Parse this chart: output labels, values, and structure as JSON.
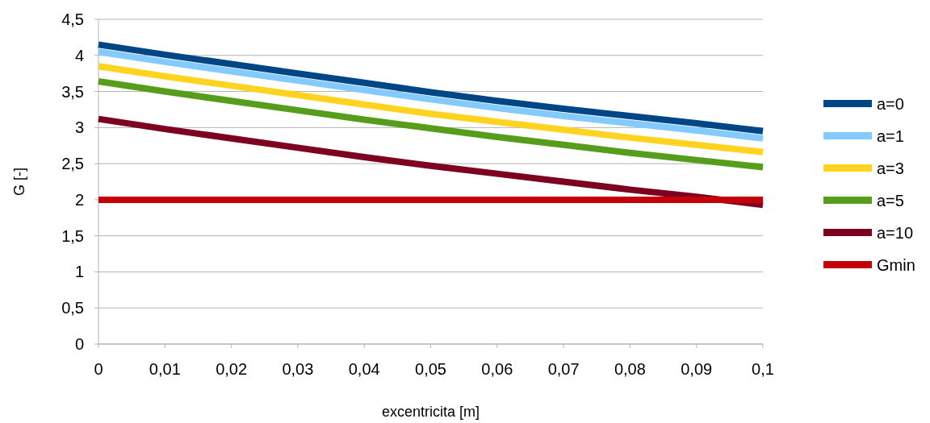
{
  "chart_data": {
    "type": "line",
    "xlabel": "excentricita [m]",
    "ylabel": "G [-]",
    "x": [
      0,
      0.01,
      0.02,
      0.03,
      0.04,
      0.05,
      0.06,
      0.07,
      0.08,
      0.09,
      0.1
    ],
    "xlim": [
      0,
      0.1
    ],
    "xticks": [
      0,
      {
        "value": 0.01,
        "label": "0,01"
      },
      {
        "value": 0.02,
        "label": "0,02"
      },
      {
        "value": 0.03,
        "label": "0,03"
      },
      {
        "value": 0.04,
        "label": "0,04"
      },
      {
        "value": 0.05,
        "label": "0,05"
      },
      {
        "value": 0.06,
        "label": "0,06"
      },
      {
        "value": 0.07,
        "label": "0,07"
      },
      {
        "value": 0.08,
        "label": "0,08"
      },
      {
        "value": 0.09,
        "label": "0,09"
      },
      {
        "value": 0.1,
        "label": "0,1"
      }
    ],
    "ylim": [
      0,
      4.5
    ],
    "yticks": [
      0,
      {
        "value": 0.5,
        "label": "0,5"
      },
      1,
      {
        "value": 1.5,
        "label": "1,5"
      },
      2,
      {
        "value": 2.5,
        "label": "2,5"
      },
      3,
      {
        "value": 3.5,
        "label": "3,5"
      },
      4,
      {
        "value": 4.5,
        "label": "4,5"
      }
    ],
    "grid": "y",
    "legend": "right",
    "marker": "none",
    "line_style": "solid",
    "series": [
      {
        "name": "a=0",
        "color": "#004586",
        "values": [
          4.15,
          4.01,
          3.88,
          3.75,
          3.62,
          3.49,
          3.37,
          3.26,
          3.16,
          3.06,
          2.95
        ]
      },
      {
        "name": "a=1",
        "color": "#83caff",
        "values": [
          4.05,
          3.91,
          3.78,
          3.65,
          3.52,
          3.39,
          3.27,
          3.16,
          3.06,
          2.96,
          2.85
        ]
      },
      {
        "name": "a=3",
        "color": "#ffd320",
        "values": [
          3.85,
          3.71,
          3.58,
          3.45,
          3.32,
          3.19,
          3.08,
          2.97,
          2.86,
          2.76,
          2.66
        ]
      },
      {
        "name": "a=5",
        "color": "#579d1c",
        "values": [
          3.64,
          3.5,
          3.37,
          3.24,
          3.11,
          2.99,
          2.87,
          2.76,
          2.65,
          2.55,
          2.45
        ]
      },
      {
        "name": "a=10",
        "color": "#7e0021",
        "values": [
          3.12,
          2.98,
          2.85,
          2.72,
          2.59,
          2.47,
          2.36,
          2.25,
          2.14,
          2.04,
          1.93
        ]
      },
      {
        "name": "Gmin",
        "color": "#c5000b",
        "values": [
          2,
          2,
          2,
          2,
          2,
          2,
          2,
          2,
          2,
          2,
          2
        ]
      }
    ]
  }
}
